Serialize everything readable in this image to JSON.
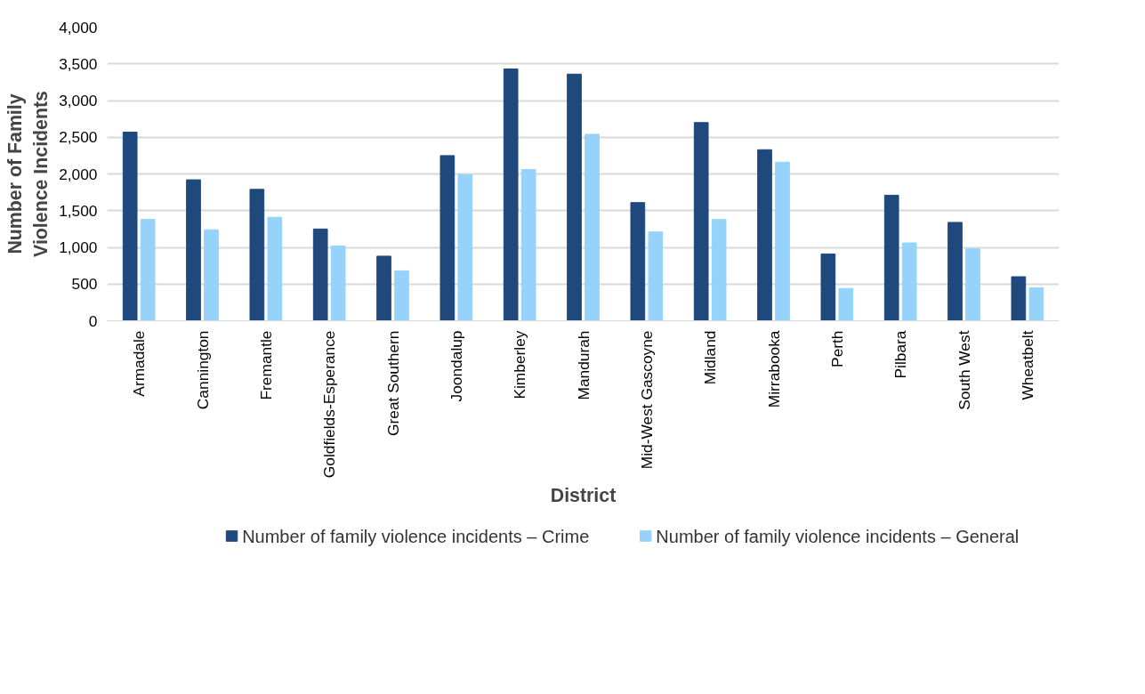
{
  "chart_data": {
    "type": "bar",
    "xlabel": "District",
    "ylabel": "Number of Family\nViolence Incidents",
    "categories": [
      "Armadale",
      "Cannington",
      "Fremantle",
      "Goldfields-Esperance",
      "Great Southern",
      "Joondalup",
      "Kimberley",
      "Mandurah",
      "Mid-West Gascoyne",
      "Midland",
      "Mirrabooka",
      "Perth",
      "Pilbara",
      "South West",
      "Wheatbelt"
    ],
    "series": [
      {
        "name": "Number of family violence incidents – Crime",
        "color": "#1f497d",
        "values": [
          2570,
          1920,
          1790,
          1250,
          880,
          2250,
          3430,
          3360,
          1610,
          2700,
          2330,
          910,
          1710,
          1340,
          600
        ]
      },
      {
        "name": "Number of family violence incidents – General",
        "color": "#95d3fb",
        "values": [
          1380,
          1240,
          1410,
          1020,
          680,
          1990,
          2060,
          2540,
          1210,
          1380,
          2160,
          440,
          1060,
          980,
          450
        ]
      }
    ],
    "ylim": [
      0,
      4000
    ],
    "yticks": [
      {
        "value": 0,
        "label": "0"
      },
      {
        "value": 500,
        "label": "500"
      },
      {
        "value": 1000,
        "label": "1,000"
      },
      {
        "value": 1500,
        "label": "1,500"
      },
      {
        "value": 2000,
        "label": "2,000"
      },
      {
        "value": 2500,
        "label": "2,500"
      },
      {
        "value": 3000,
        "label": "3,000"
      },
      {
        "value": 3500,
        "label": "3,500"
      },
      {
        "value": 4000,
        "label": "4,000"
      }
    ],
    "grid": "y",
    "legend": "bottom"
  }
}
